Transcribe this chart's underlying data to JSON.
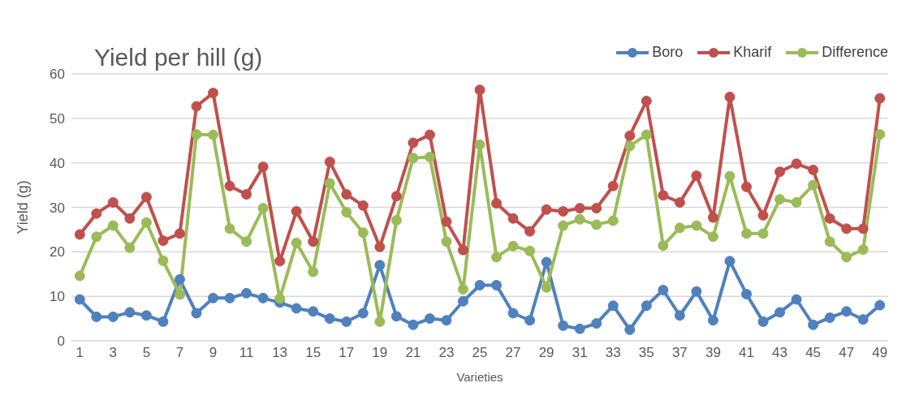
{
  "chart_data": {
    "type": "line",
    "title": "Yield per hill (g)",
    "xlabel": "Varieties",
    "ylabel": "Yield (g)",
    "x": [
      1,
      2,
      3,
      4,
      5,
      6,
      7,
      8,
      9,
      10,
      11,
      12,
      13,
      14,
      15,
      16,
      17,
      18,
      19,
      20,
      21,
      22,
      23,
      24,
      25,
      26,
      27,
      28,
      29,
      30,
      31,
      32,
      33,
      34,
      35,
      36,
      37,
      38,
      39,
      40,
      41,
      42,
      43,
      44,
      45,
      46,
      47,
      48,
      49
    ],
    "xlim": [
      0.5,
      49.5
    ],
    "xticks": [
      1,
      3,
      5,
      7,
      9,
      11,
      13,
      15,
      17,
      19,
      21,
      23,
      25,
      27,
      29,
      31,
      33,
      35,
      37,
      39,
      41,
      43,
      45,
      47,
      49
    ],
    "ylim": [
      0,
      60
    ],
    "yticks": [
      0,
      10,
      20,
      30,
      40,
      50,
      60
    ],
    "grid": "y",
    "legend": "top right",
    "marker": "circle",
    "line_style": "solid",
    "series": [
      {
        "name": "Boro",
        "color": "#4f81bd",
        "values": [
          9.3,
          5.4,
          5.4,
          6.4,
          5.7,
          4.3,
          13.8,
          6.2,
          9.6,
          9.6,
          10.7,
          9.6,
          8.6,
          7.3,
          6.6,
          5,
          4.3,
          6.2,
          17,
          5.5,
          3.6,
          5,
          4.6,
          8.9,
          12.5,
          12.5,
          6.2,
          4.6,
          17.7,
          3.4,
          2.7,
          3.9,
          7.9,
          2.5,
          7.9,
          11.4,
          5.7,
          11.1,
          4.6,
          17.9,
          10.5,
          4.3,
          6.4,
          9.3,
          3.6,
          5.2,
          6.6,
          4.8,
          8
        ]
      },
      {
        "name": "Kharif",
        "color": "#c0504d",
        "values": [
          23.9,
          28.6,
          31.1,
          27.5,
          32.3,
          22.5,
          24.1,
          52.7,
          55.7,
          34.8,
          32.9,
          39.1,
          17.9,
          29.1,
          22.3,
          40.2,
          32.9,
          30.4,
          21.1,
          32.5,
          44.5,
          46.3,
          26.8,
          20.4,
          56.4,
          30.9,
          27.5,
          24.6,
          29.5,
          29.1,
          29.8,
          29.8,
          34.8,
          46.1,
          53.9,
          32.7,
          31.1,
          37.1,
          27.7,
          54.8,
          34.6,
          28.2,
          38,
          39.8,
          38.4,
          27.5,
          25.2,
          25.2,
          54.5
        ]
      },
      {
        "name": "Difference",
        "color": "#9bbb59",
        "values": [
          14.6,
          23.4,
          25.9,
          20.9,
          26.6,
          18,
          10.4,
          46.4,
          46.3,
          25.2,
          22.3,
          29.8,
          9.5,
          22,
          15.5,
          35.4,
          28.9,
          24.3,
          4.3,
          27.1,
          41.1,
          41.3,
          22.3,
          11.6,
          44.1,
          18.8,
          21.3,
          20.2,
          12,
          25.9,
          27.3,
          26.1,
          27,
          43.8,
          46.3,
          21.4,
          25.4,
          25.9,
          23.4,
          37,
          24.1,
          24.1,
          31.8,
          31.1,
          35,
          22.3,
          18.8,
          20.5,
          46.4
        ]
      }
    ]
  }
}
